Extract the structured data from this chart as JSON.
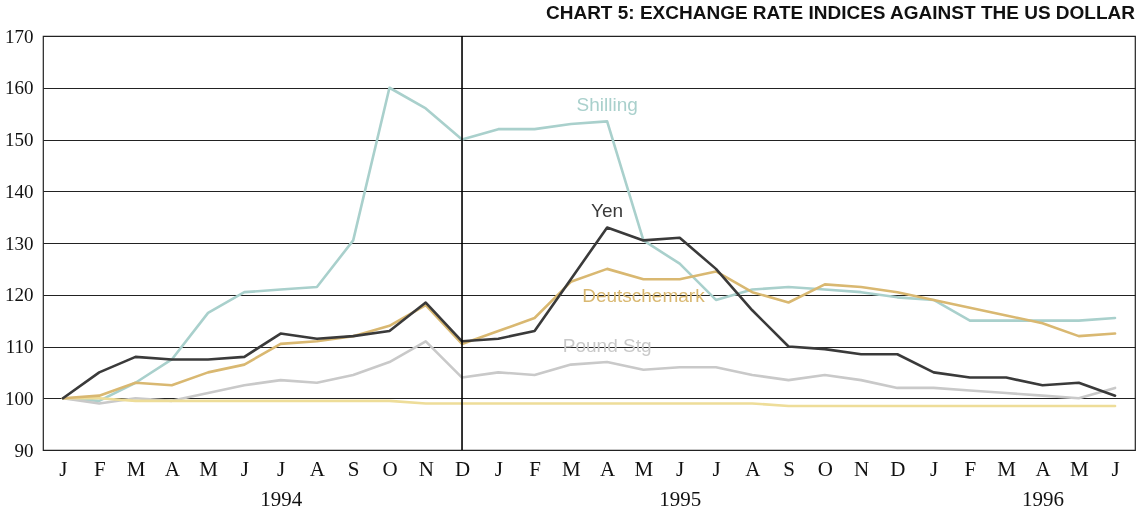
{
  "chart_data": {
    "type": "line",
    "title": "CHART 5:      EXCHANGE RATE INDICES  AGAINST THE US DOLLAR",
    "categories": [
      "J",
      "F",
      "M",
      "A",
      "M",
      "J",
      "J\n1994",
      "A",
      "S",
      "O",
      "N",
      "D",
      "J",
      "F",
      "M",
      "A",
      "M",
      "J\n1995",
      "J",
      "A",
      "S",
      "O",
      "N",
      "D",
      "J",
      "F",
      "M",
      "A\n1996",
      "M",
      "J"
    ],
    "series": [
      {
        "name": "Shilling",
        "color": "#a9d0cc",
        "values": [
          100,
          99.5,
          103,
          107.5,
          116.5,
          120.5,
          121,
          121.5,
          130.5,
          160,
          156,
          150,
          152,
          152,
          153,
          153.5,
          130.5,
          126,
          119,
          121,
          121.5,
          121,
          120.5,
          119.5,
          119,
          115,
          115,
          115,
          115,
          115.5
        ]
      },
      {
        "name": "Pound Stg",
        "color": "#c9c9c9",
        "values": [
          100,
          99,
          100,
          99.5,
          101,
          102.5,
          103.5,
          103,
          104.5,
          107,
          111,
          104,
          105,
          104.5,
          106.5,
          107,
          105.5,
          106,
          106,
          104.5,
          103.5,
          104.5,
          103.5,
          102,
          102,
          101.5,
          101,
          100.5,
          100,
          102
        ]
      },
      {
        "color": "#eedd99",
        "values": [
          100,
          100,
          99.5,
          99.5,
          99.5,
          99.5,
          99.5,
          99.5,
          99.5,
          99.5,
          99,
          99,
          99,
          99,
          99,
          99,
          99,
          99,
          99,
          99,
          98.5,
          98.5,
          98.5,
          98.5,
          98.5,
          98.5,
          98.5,
          98.5,
          98.5,
          98.5
        ]
      },
      {
        "name": "Deutschemark",
        "color": "#d9b871",
        "values": [
          100,
          100.5,
          103,
          102.5,
          105,
          106.5,
          110.5,
          111,
          112,
          114,
          118,
          110.5,
          113,
          115.5,
          122.5,
          125,
          123,
          123,
          124.5,
          120.5,
          118.5,
          122,
          121.5,
          120.5,
          119,
          117.5,
          116,
          114.5,
          112,
          112.5
        ]
      },
      {
        "name": "Yen",
        "color": "#3a3a3a",
        "values": [
          100,
          105,
          108,
          107.5,
          107.5,
          108,
          112.5,
          111.5,
          112,
          113,
          118.5,
          111,
          111.5,
          113,
          123,
          133,
          130.5,
          131,
          125,
          117,
          110,
          109.5,
          108.5,
          108.5,
          105,
          104,
          104,
          102.5,
          103,
          100.5
        ]
      }
    ],
    "ylim": [
      90,
      170
    ],
    "yticks": [
      90,
      100,
      110,
      120,
      130,
      140,
      150,
      160,
      170
    ],
    "ref_lines": [
      {
        "axis": "x",
        "value": "D",
        "color": "#000000"
      }
    ],
    "grid": "y",
    "legend": false,
    "marker": "none",
    "line_style": "solid"
  }
}
